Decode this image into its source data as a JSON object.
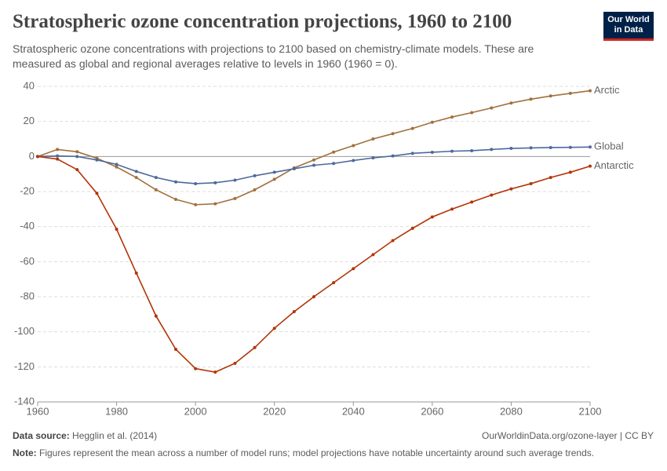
{
  "header": {
    "title": "Stratospheric ozone concentration projections, 1960 to 2100",
    "subtitle": "Stratospheric ozone concentrations with projections to 2100 based on chemistry-climate models. These are measured as global and regional averages relative to levels in 1960 (1960 = 0).",
    "logo": [
      "Our World",
      "in Data"
    ]
  },
  "chart_data": {
    "type": "line",
    "x": [
      1960,
      1965,
      1970,
      1975,
      1980,
      1985,
      1990,
      1995,
      2000,
      2005,
      2010,
      2015,
      2020,
      2025,
      2030,
      2035,
      2040,
      2045,
      2050,
      2055,
      2060,
      2065,
      2070,
      2075,
      2080,
      2085,
      2090,
      2095,
      2100
    ],
    "series": [
      {
        "name": "Arctic",
        "color": "#a2703c",
        "values": [
          0,
          4,
          2.7,
          -1,
          -6,
          -12,
          -19,
          -24.5,
          -27.5,
          -27,
          -24,
          -19,
          -13,
          -6.5,
          -2,
          2.5,
          6.2,
          10,
          13,
          16,
          19.5,
          22.5,
          25,
          27.7,
          30.5,
          32.7,
          34.5,
          36,
          37.5
        ]
      },
      {
        "name": "Global",
        "color": "#4c6a9c",
        "values": [
          0,
          0.3,
          0,
          -2,
          -4.5,
          -8.5,
          -12,
          -14.5,
          -15.5,
          -15,
          -13.5,
          -11,
          -9,
          -7,
          -5,
          -4,
          -2.3,
          -0.8,
          0.3,
          1.8,
          2.4,
          3,
          3.3,
          4,
          4.6,
          4.9,
          5.1,
          5.2,
          5.4
        ]
      },
      {
        "name": "Antarctic",
        "color": "#b13507",
        "values": [
          0,
          -1.5,
          -7.5,
          -21,
          -41.5,
          -66.5,
          -91,
          -110,
          -121,
          -123,
          -118,
          -109,
          -98,
          -88.5,
          -80,
          -72,
          -64,
          -56,
          -48,
          -41,
          -34.5,
          -30,
          -26,
          -22,
          -18.5,
          -15.5,
          -12,
          -9,
          -5.5
        ]
      }
    ],
    "xlim": [
      1960,
      2100
    ],
    "xticks": [
      1960,
      1980,
      2000,
      2020,
      2040,
      2060,
      2080,
      2100
    ],
    "ylim": [
      -140,
      40
    ],
    "yticks": [
      -140,
      -120,
      -100,
      -80,
      -60,
      -40,
      -20,
      0,
      20,
      40
    ],
    "grid": true
  },
  "footer": {
    "source_label": "Data source:",
    "source": "Hegglin et al. (2014)",
    "url": "OurWorldinData.org/ozone-layer | CC BY",
    "note_label": "Note:",
    "note": "Figures represent the mean across a number of model runs; model projections have notable uncertainty around such average trends."
  }
}
